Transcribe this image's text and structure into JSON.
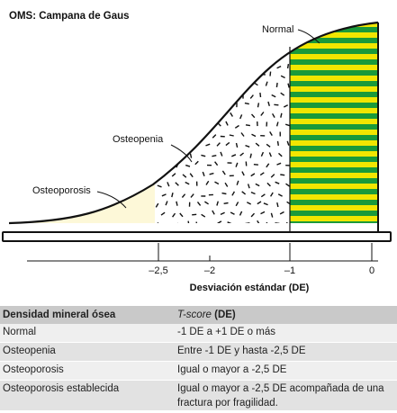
{
  "figure": {
    "title": "OMS: Campana de Gaus",
    "labels": {
      "normal": "Normal",
      "osteopenia": "Osteopenia",
      "osteoporosis": "Osteoporosis"
    },
    "x_axis": {
      "label": "Desviación estándar (DE)",
      "ticks": [
        "–2,5",
        "–2",
        "–1",
        "0"
      ]
    },
    "colors": {
      "normal_stripe_a": "#1a9a3a",
      "normal_stripe_b": "#f2e600",
      "osteoporosis_fill": "#fdf8d8",
      "outline": "#111111"
    }
  },
  "table": {
    "header": {
      "col1": "Densidad mineral ósea",
      "col2_italic": "T-score",
      "col2_rest": " (DE)"
    },
    "rows": [
      {
        "category": "Normal",
        "tscore": "-1 DE a +1 DE o más"
      },
      {
        "category": "Osteopenia",
        "tscore": "Entre -1 DE y hasta -2,5 DE"
      },
      {
        "category": "Osteoporosis",
        "tscore": "Igual o mayor a -2,5 DE"
      },
      {
        "category": "Osteoporosis establecida",
        "tscore": "Igual o mayor a -2,5 DE acompañada de una fractura por fragilidad."
      }
    ]
  }
}
